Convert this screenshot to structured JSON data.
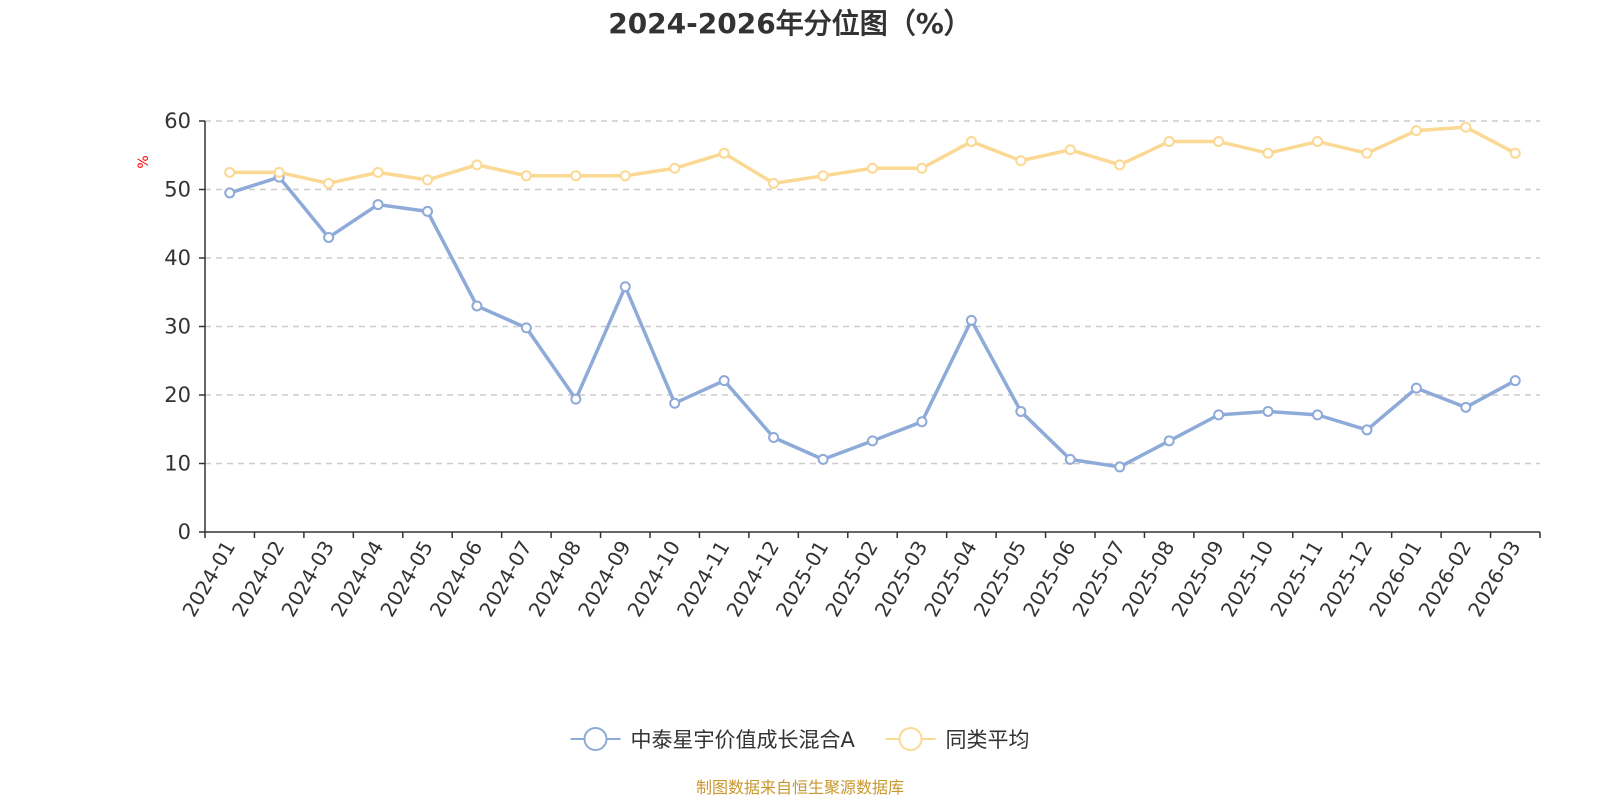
{
  "chart_data": {
    "type": "line",
    "title": "2024-2026年分位图（%）",
    "ylabel": "%",
    "xlabel": "",
    "ylim": [
      0,
      60
    ],
    "yticks": [
      0,
      10,
      20,
      30,
      40,
      50,
      60
    ],
    "grid": true,
    "legend_position": "bottom",
    "categories": [
      "2024-01",
      "2024-02",
      "2024-03",
      "2024-04",
      "2024-05",
      "2024-06",
      "2024-07",
      "2024-08",
      "2024-09",
      "2024-10",
      "2024-11",
      "2024-12",
      "2025-01",
      "2025-02",
      "2025-03",
      "2025-04",
      "2025-05",
      "2025-06",
      "2025-07",
      "2025-08",
      "2025-09",
      "2025-10",
      "2025-11",
      "2025-12",
      "2026-01",
      "2026-02",
      "2026-03"
    ],
    "series": [
      {
        "name": "中泰星宇价值成长混合A",
        "color": "#8eaad8",
        "values": [
          49.5,
          51.8,
          43.0,
          47.8,
          46.8,
          33.0,
          29.8,
          19.4,
          35.8,
          18.8,
          22.1,
          13.8,
          10.6,
          13.3,
          16.1,
          30.9,
          17.6,
          10.6,
          9.5,
          13.3,
          17.1,
          17.6,
          17.1,
          14.9,
          21.0,
          18.2,
          22.1
        ]
      },
      {
        "name": "同类平均",
        "color": "#fbd994",
        "values": [
          52.5,
          52.5,
          50.9,
          52.5,
          51.4,
          53.6,
          52.0,
          52.0,
          52.0,
          53.1,
          55.3,
          50.9,
          52.0,
          53.1,
          53.1,
          57.0,
          54.2,
          55.8,
          53.6,
          57.0,
          57.0,
          55.3,
          57.0,
          55.3,
          58.6,
          59.1,
          55.3
        ]
      }
    ]
  },
  "source": "制图数据来自恒生聚源数据库"
}
